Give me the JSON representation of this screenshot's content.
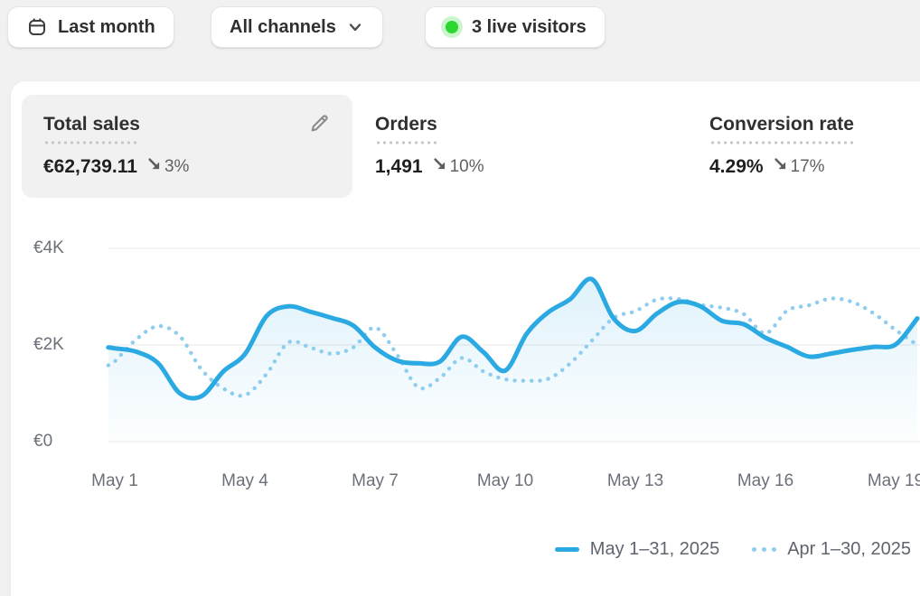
{
  "toolbar": {
    "date_range": {
      "label": "Last month"
    },
    "channel": {
      "label": "All channels"
    },
    "live_visitors": {
      "label": "3 live visitors"
    }
  },
  "metrics": [
    {
      "title": "Total sales",
      "value": "€62,739.11",
      "delta": "3%",
      "delta_direction": "down",
      "selected": true,
      "editable": true
    },
    {
      "title": "Orders",
      "value": "1,491",
      "delta": "10%",
      "delta_direction": "down",
      "selected": false
    },
    {
      "title": "Conversion rate",
      "value": "4.29%",
      "delta": "17%",
      "delta_direction": "down",
      "selected": false
    }
  ],
  "chart_data": {
    "type": "line",
    "title": "",
    "xlabel": "",
    "ylabel": "",
    "ylim": [
      0,
      4000
    ],
    "grid": true,
    "legend_position": "bottom-right",
    "y_ticks": [
      {
        "label": "€4K",
        "value": 4000
      },
      {
        "label": "€2K",
        "value": 2000
      },
      {
        "label": "€0",
        "value": 0
      }
    ],
    "x_ticks": [
      {
        "label": "May 1",
        "day": 1
      },
      {
        "label": "May 4",
        "day": 4
      },
      {
        "label": "May 7",
        "day": 7
      },
      {
        "label": "May 10",
        "day": 10
      },
      {
        "label": "May 13",
        "day": 13
      },
      {
        "label": "May 16",
        "day": 16
      },
      {
        "label": "May 19",
        "day": 19
      }
    ],
    "x_unit": "day",
    "x": [
      0.85,
      1,
      1.5,
      2,
      2.5,
      3,
      3.5,
      4,
      4.5,
      5,
      5.5,
      6,
      6.5,
      7,
      7.5,
      8,
      8.5,
      9,
      9.5,
      10,
      10.5,
      11,
      11.5,
      12,
      12.5,
      13,
      13.5,
      14,
      14.5,
      15,
      15.5,
      16,
      16.5,
      17,
      17.5,
      18,
      18.5,
      19,
      19.5
    ],
    "series": [
      {
        "name": "May 1–31, 2025",
        "style": "solid",
        "color": "#2aa9e2",
        "fill": true,
        "values": [
          1950,
          1930,
          1860,
          1620,
          1000,
          940,
          1450,
          1810,
          2600,
          2800,
          2690,
          2560,
          2400,
          1950,
          1680,
          1620,
          1660,
          2170,
          1850,
          1470,
          2240,
          2680,
          2950,
          3360,
          2550,
          2290,
          2650,
          2890,
          2800,
          2500,
          2430,
          2150,
          1960,
          1760,
          1820,
          1900,
          1960,
          2010,
          2550
        ]
      },
      {
        "name": "Apr 1–30, 2025",
        "style": "dotted",
        "color": "#8ecdee",
        "fill": false,
        "values": [
          1580,
          1660,
          2120,
          2390,
          2180,
          1490,
          1100,
          960,
          1400,
          2050,
          1950,
          1820,
          1950,
          2360,
          1810,
          1120,
          1320,
          1730,
          1450,
          1290,
          1260,
          1300,
          1620,
          2090,
          2560,
          2700,
          2940,
          2950,
          2830,
          2770,
          2640,
          2240,
          2710,
          2820,
          2960,
          2890,
          2650,
          2310,
          2000
        ]
      }
    ]
  },
  "colors": {
    "accent_blue": "#2aa9e2",
    "comparison_blue": "#8ecdee",
    "live_green": "#2bd62e",
    "live_green_halo": "#c9f6cd",
    "page_bg": "#f1f1f1",
    "card_bg": "#ffffff",
    "selected_metric_bg": "#f1f1f1",
    "grid_line": "#e9e9e9",
    "axis_text": "#6b7079",
    "legend_text": "#5f646e",
    "delta_text": "#616161"
  }
}
